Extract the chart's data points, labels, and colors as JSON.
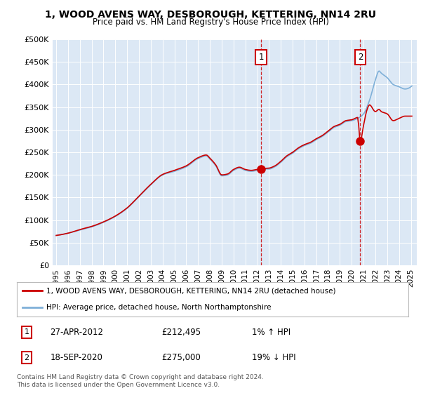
{
  "title": "1, WOOD AVENS WAY, DESBOROUGH, KETTERING, NN14 2RU",
  "subtitle": "Price paid vs. HM Land Registry's House Price Index (HPI)",
  "legend_line1": "1, WOOD AVENS WAY, DESBOROUGH, KETTERING, NN14 2RU (detached house)",
  "legend_line2": "HPI: Average price, detached house, North Northamptonshire",
  "annotation1_date": "27-APR-2012",
  "annotation1_price": "£212,495",
  "annotation1_hpi": "1% ↑ HPI",
  "annotation2_date": "18-SEP-2020",
  "annotation2_price": "£275,000",
  "annotation2_hpi": "19% ↓ HPI",
  "footer": "Contains HM Land Registry data © Crown copyright and database right 2024.\nThis data is licensed under the Open Government Licence v3.0.",
  "background_color": "#dce8f5",
  "red_line_color": "#cc0000",
  "blue_line_color": "#7fb0d8",
  "grid_color": "#ffffff",
  "ylim": [
    0,
    500000
  ],
  "yticks": [
    0,
    50000,
    100000,
    150000,
    200000,
    250000,
    300000,
    350000,
    400000,
    450000,
    500000
  ],
  "ytick_labels": [
    "£0",
    "£50K",
    "£100K",
    "£150K",
    "£200K",
    "£250K",
    "£300K",
    "£350K",
    "£400K",
    "£450K",
    "£500K"
  ],
  "sale1_x": 2012.33,
  "sale1_y": 212495,
  "sale2_x": 2020.72,
  "sale2_y": 275000,
  "xlim_left": 1994.7,
  "xlim_right": 2025.5
}
